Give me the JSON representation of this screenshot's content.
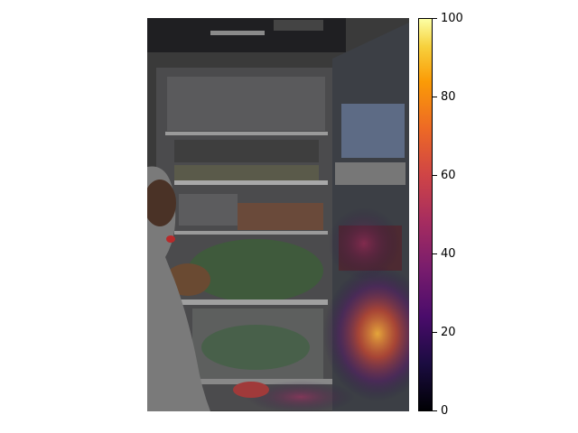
{
  "figure": {
    "image": {
      "description_icon": "refrigerator-photo-with-heatmap-overlay"
    },
    "colorbar": {
      "colormap": "inferno",
      "min": 0,
      "max": 100,
      "ticks": [
        {
          "value": 0,
          "label": "0"
        },
        {
          "value": 20,
          "label": "20"
        },
        {
          "value": 40,
          "label": "40"
        },
        {
          "value": 60,
          "label": "60"
        },
        {
          "value": 80,
          "label": "80"
        },
        {
          "value": 100,
          "label": "100"
        }
      ]
    }
  }
}
